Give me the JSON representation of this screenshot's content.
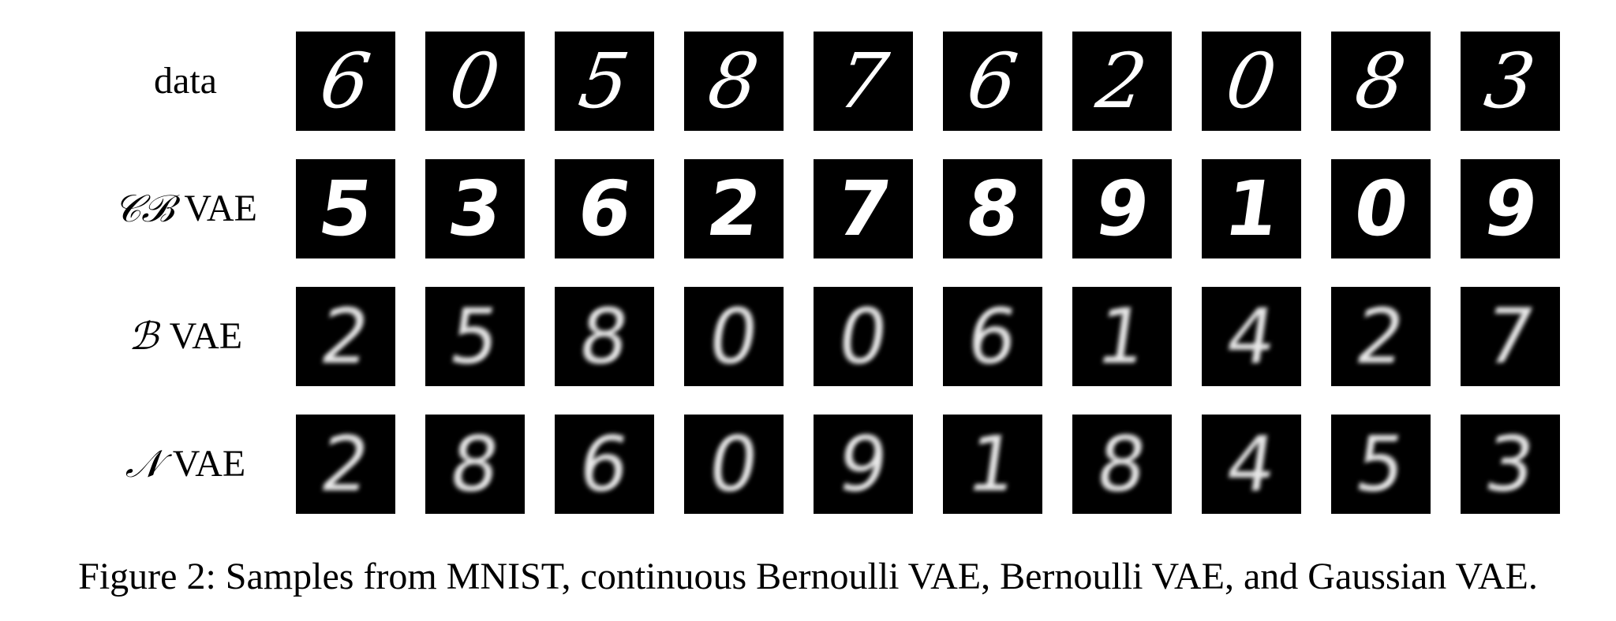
{
  "rows": [
    {
      "label_script": "",
      "label_text": "data",
      "digits": [
        "6",
        "0",
        "5",
        "8",
        "7",
        "6",
        "2",
        "0",
        "8",
        "3"
      ]
    },
    {
      "label_script": "𝒞ℬ",
      "label_text": "VAE",
      "digits": [
        "5",
        "3",
        "6",
        "2",
        "7",
        "8",
        "9",
        "1",
        "0",
        "9"
      ]
    },
    {
      "label_script": "ℬ",
      "label_text": "VAE",
      "digits": [
        "2",
        "5",
        "8",
        "0",
        "0",
        "6",
        "1",
        "4",
        "2",
        "7"
      ]
    },
    {
      "label_script": "𝒩",
      "label_text": "VAE",
      "digits": [
        "2",
        "8",
        "6",
        "0",
        "9",
        "1",
        "8",
        "4",
        "5",
        "3"
      ]
    }
  ],
  "caption": "Figure 2: Samples from MNIST, continuous Bernoulli VAE, Bernoulli VAE, and Gaussian VAE."
}
